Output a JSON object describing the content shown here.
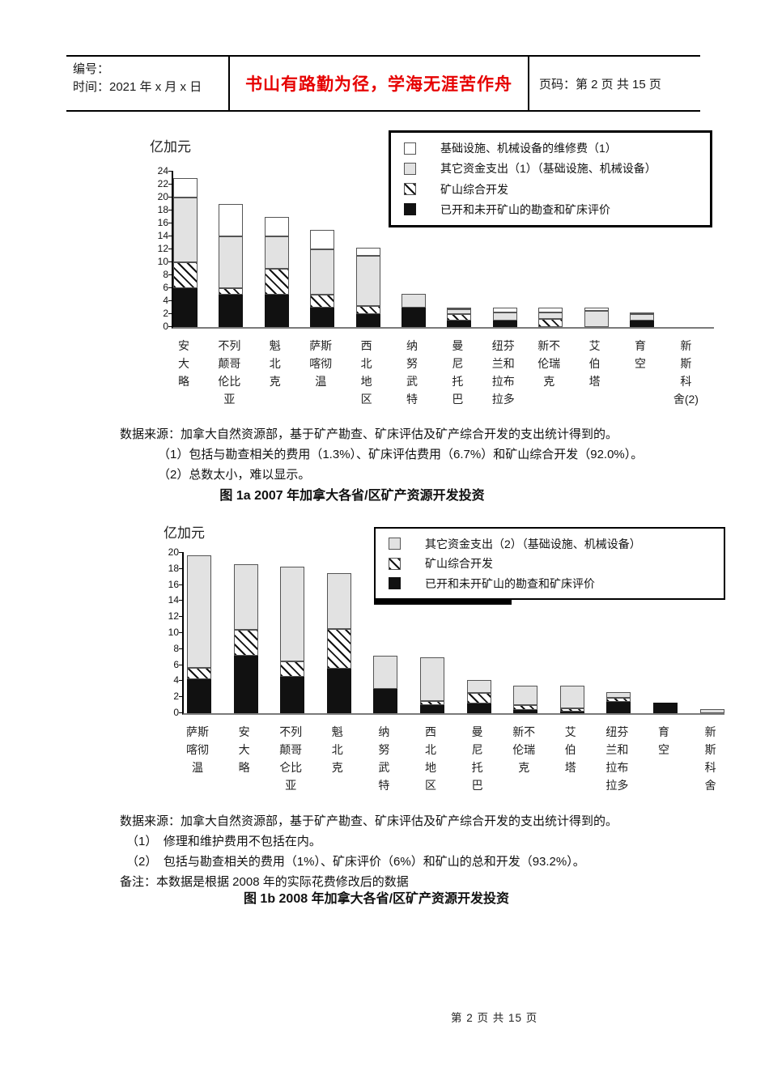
{
  "header": {
    "number_label": "编号：",
    "date_label": "时间：2021 年 x 月 x 日",
    "motto": "书山有路勤为径，学海无涯苦作舟",
    "page_label": "页码：第 2 页  共 15 页"
  },
  "chart_data": [
    {
      "type": "bar",
      "stacked": true,
      "title": "图 1a  2007 年加拿大各省/区矿产资源开发投资",
      "ylabel": "亿加元",
      "xlabel": "",
      "ylim": [
        0,
        24
      ],
      "ytick_step": 2,
      "grid": false,
      "legend_position": "top-right",
      "legend": [
        {
          "label": "基础设施、机械设备的维修费（1）",
          "style": "white"
        },
        {
          "label": "其它资金支出（1）（基础设施、机械设备）",
          "style": "gray"
        },
        {
          "label": "矿山综合开发",
          "style": "hatch"
        },
        {
          "label": "已开和未开矿山的勘查和矿床评价",
          "style": "black"
        }
      ],
      "categories": [
        [
          "安",
          "大",
          "略"
        ],
        [
          "不列",
          "颠哥",
          "伦比",
          "亚"
        ],
        [
          "魁",
          "北",
          "克"
        ],
        [
          "萨斯",
          "喀彻",
          "温"
        ],
        [
          "西",
          "北",
          "地",
          "区"
        ],
        [
          "纳",
          "努",
          "武",
          "特"
        ],
        [
          "曼",
          "尼",
          "托",
          "巴"
        ],
        [
          "纽芬",
          "兰和",
          "拉布",
          "拉多"
        ],
        [
          "新不",
          "伦瑞",
          "克"
        ],
        [
          "艾",
          "伯",
          "塔"
        ],
        [
          "育",
          "空"
        ],
        [
          "新",
          "斯",
          "科",
          "舍(2)"
        ]
      ],
      "series": [
        {
          "name": "已开和未开矿山的勘查和矿床评价",
          "style": "black",
          "values": [
            6,
            5,
            5,
            3,
            2,
            3,
            1,
            1,
            0,
            0,
            1,
            0
          ]
        },
        {
          "name": "矿山综合开发",
          "style": "hatch",
          "values": [
            4,
            1,
            4,
            2,
            1.2,
            0,
            1,
            0,
            1.3,
            0,
            0,
            0
          ]
        },
        {
          "name": "其它资金支出（1）（基础设施、机械设备）",
          "style": "gray",
          "values": [
            10,
            8,
            5,
            7,
            7.8,
            2.1,
            0.7,
            1.2,
            1,
            2.5,
            1,
            0
          ]
        },
        {
          "name": "基础设施、机械设备的维修费（1）",
          "style": "white",
          "values": [
            3,
            5,
            3,
            3,
            1.2,
            0,
            0.3,
            0.8,
            0.7,
            0.5,
            0.2,
            0
          ]
        }
      ]
    },
    {
      "type": "bar",
      "stacked": true,
      "title": "图 1b  2008 年加拿大各省/区矿产资源开发投资",
      "ylabel": "亿加元",
      "xlabel": "",
      "ylim": [
        0,
        20
      ],
      "ytick_step": 2,
      "grid": false,
      "legend_position": "top-right",
      "legend": [
        {
          "label": "其它资金支出（2）（基础设施、机械设备）",
          "style": "gray"
        },
        {
          "label": "矿山综合开发",
          "style": "hatch"
        },
        {
          "label": "已开和未开矿山的勘查和矿床评价",
          "style": "black"
        }
      ],
      "categories": [
        [
          "萨斯",
          "喀彻",
          "温"
        ],
        [
          "安",
          "大",
          "略"
        ],
        [
          "不列",
          "颠哥",
          "仑比",
          "亚"
        ],
        [
          "魁",
          "北",
          "克"
        ],
        [
          "纳",
          "努",
          "武",
          "特"
        ],
        [
          "西",
          "北",
          "地",
          "区"
        ],
        [
          "曼",
          "尼",
          "托",
          "巴"
        ],
        [
          "新不",
          "伦瑞",
          "克"
        ],
        [
          "艾",
          "伯",
          "塔"
        ],
        [
          "纽芬",
          "兰和",
          "拉布",
          "拉多"
        ],
        [
          "育",
          "空"
        ],
        [
          "新",
          "斯",
          "科",
          "舍"
        ]
      ],
      "series": [
        {
          "name": "已开和未开矿山的勘查和矿床评价",
          "style": "black",
          "values": [
            4.2,
            7.2,
            4.5,
            5.6,
            3,
            1,
            1.2,
            0.4,
            0.2,
            1.4,
            1.3,
            0
          ]
        },
        {
          "name": "矿山综合开发",
          "style": "hatch",
          "values": [
            1.5,
            3.2,
            2,
            4.9,
            0,
            0.5,
            1.3,
            0.6,
            0.4,
            0.5,
            0,
            0
          ]
        },
        {
          "name": "其它资金支出（2）（基础设施、机械设备）",
          "style": "gray",
          "values": [
            14,
            8.2,
            11.8,
            7,
            4.2,
            5.5,
            1.6,
            2.4,
            2.8,
            0.7,
            0,
            0.5
          ]
        }
      ]
    }
  ],
  "figure_1a": {
    "notes": [
      "数据来源：加拿大自然资源部，基于矿产勘查、矿床评估及矿产综合开发的支出统计得到的。",
      "（1）包括与勘查相关的费用（1.3%）、矿床评估费用（6.7%）和矿山综合开发（92.0%）。",
      "（2）总数太小，难以显示。"
    ],
    "caption": "图 1a  2007 年加拿大各省/区矿产资源开发投资"
  },
  "figure_1b": {
    "notes": [
      "数据来源：加拿大自然资源部，基于矿产勘查、矿床评估及矿产综合开发的支出统计得到的。",
      "（1）　修理和维护费用不包括在内。",
      "（2）　包括与勘查相关的费用（1%）、矿床评价（6%）和矿山的总和开发（93.2%）。",
      "备注：本数据是根据 2008 年的实际花费修改后的数据"
    ],
    "caption": "图 1b  2008 年加拿大各省/区矿产资源开发投资"
  },
  "footer": {
    "page_text": "第 2 页 共 15 页"
  },
  "colors": {
    "motto_red": "#e60000",
    "bar_black": "#111111",
    "bar_gray": "#e2e2e2",
    "bar_white": "#ffffff",
    "hatch": "black-diagonal-on-white"
  }
}
